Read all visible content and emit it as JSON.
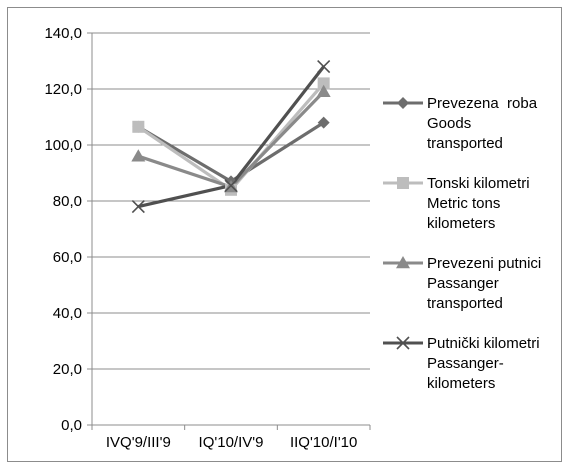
{
  "chart_data": {
    "type": "line",
    "title": "",
    "xlabel": "",
    "ylabel": "",
    "categories": [
      "IVQ'9/III'9",
      "IQ'10/IV'9",
      "IIQ'10/I'10"
    ],
    "ylim": [
      0,
      140
    ],
    "y_ticks": [
      "0,0",
      "20,0",
      "40,0",
      "60,0",
      "80,0",
      "100,0",
      "120,0",
      "140,0"
    ],
    "y_tick_values": [
      0,
      20,
      40,
      60,
      80,
      100,
      120,
      140
    ],
    "grid": "horizontal",
    "legend_position": "right",
    "series": [
      {
        "name": "Prevezena  roba Goods transported",
        "name_lines": [
          "Prevezena  roba",
          "Goods",
          "transported"
        ],
        "marker": "diamond",
        "color": "#6d6d6d",
        "values": [
          106.5,
          87,
          108
        ]
      },
      {
        "name": "Tonski kilometri Metric tons kilometers",
        "name_lines": [
          "Tonski kilometri",
          "Metric tons",
          "kilometers"
        ],
        "marker": "square",
        "color": "#bdbdbd",
        "values": [
          106.5,
          84,
          122
        ]
      },
      {
        "name": "Prevezeni putnici Passanger transported",
        "name_lines": [
          "Prevezeni putnici",
          "Passanger",
          "transported"
        ],
        "marker": "triangle",
        "color": "#8a8a8a",
        "values": [
          96,
          85,
          119
        ]
      },
      {
        "name": "Putnički kilometri Passanger- kilometers",
        "name_lines": [
          "Putnički kilometri",
          "Passanger-",
          "kilometers"
        ],
        "marker": "x",
        "color": "#505050",
        "values": [
          78,
          85.5,
          128
        ]
      }
    ]
  }
}
